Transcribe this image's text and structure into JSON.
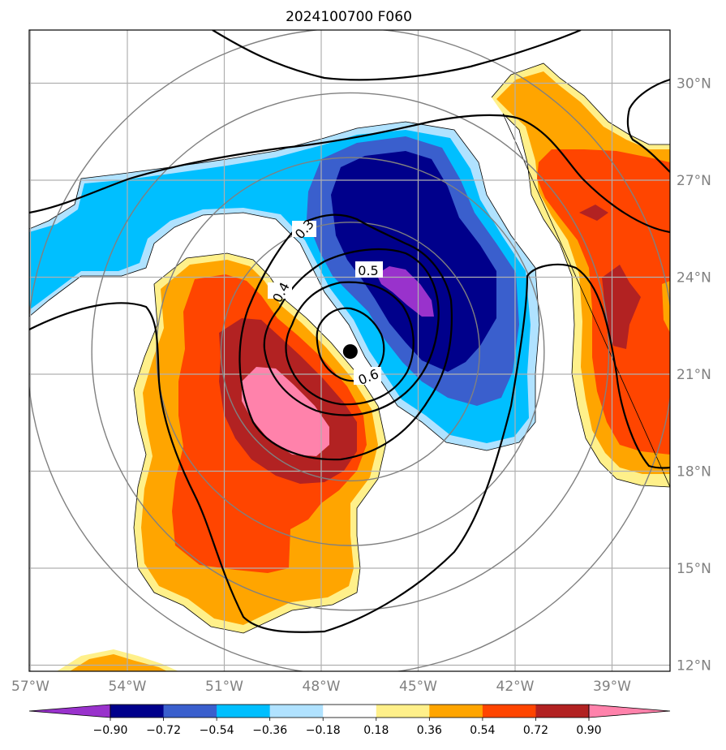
{
  "title": "2024100700 F060",
  "x_ticks": [
    {
      "label": "57°W",
      "lon": -57
    },
    {
      "label": "54°W",
      "lon": -54
    },
    {
      "label": "51°W",
      "lon": -51
    },
    {
      "label": "48°W",
      "lon": -48
    },
    {
      "label": "45°W",
      "lon": -45
    },
    {
      "label": "42°W",
      "lon": -42
    },
    {
      "label": "39°W",
      "lon": -39
    }
  ],
  "y_ticks": [
    {
      "label": "30°N",
      "lat": 30
    },
    {
      "label": "27°N",
      "lat": 27
    },
    {
      "label": "24°N",
      "lat": 24
    },
    {
      "label": "21°N",
      "lat": 21
    },
    {
      "label": "18°N",
      "lat": 18
    },
    {
      "label": "15°N",
      "lat": 15
    },
    {
      "label": "12°N",
      "lat": 12
    }
  ],
  "colorbar": {
    "colors": [
      "#9932cc",
      "#00008b",
      "#3a5fcd",
      "#00bfff",
      "#b0e2ff",
      "#ffffff",
      "#fff08a",
      "#ffa500",
      "#ff4500",
      "#b22222",
      "#ff82ab"
    ],
    "labels": [
      "−0.90",
      "−0.72",
      "−0.54",
      "−0.36",
      "−0.18",
      "0.18",
      "0.36",
      "0.54",
      "0.72",
      "0.90"
    ]
  },
  "contour_labels": [
    "0.3",
    "0.4",
    "0.5",
    "0.6"
  ],
  "storm_center": {
    "lon": -47.1,
    "lat": 21.7
  },
  "colors": {
    "ring": "#808080",
    "grid": "#b0b0b0",
    "tick": "#808080"
  }
}
